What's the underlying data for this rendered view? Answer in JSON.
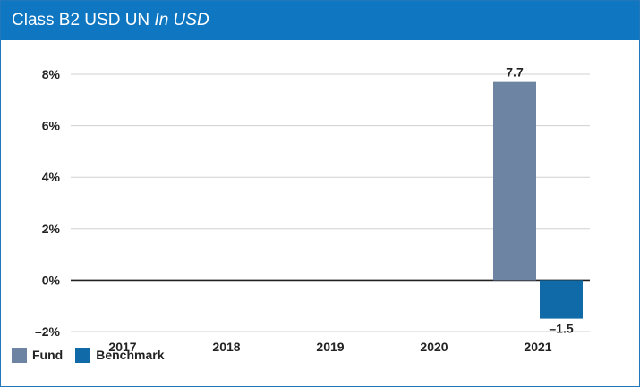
{
  "header": {
    "title": "Class B2 USD UN",
    "subtitle": "In USD",
    "background": "#0f77c1"
  },
  "chart_data": {
    "type": "bar",
    "categories": [
      "2017",
      "2018",
      "2019",
      "2020",
      "2021"
    ],
    "series": [
      {
        "name": "Fund",
        "color": "#6d84a3",
        "values": [
          null,
          null,
          null,
          null,
          7.7
        ]
      },
      {
        "name": "Benchmark",
        "color": "#0f6aa7",
        "values": [
          null,
          null,
          null,
          null,
          -1.5
        ]
      }
    ],
    "data_labels": [
      "7.7",
      "–1.5"
    ],
    "y_ticks": [
      {
        "value": 8,
        "label": "8%"
      },
      {
        "value": 6,
        "label": "6%"
      },
      {
        "value": 4,
        "label": "4%"
      },
      {
        "value": 2,
        "label": "2%"
      },
      {
        "value": 0,
        "label": "0%"
      },
      {
        "value": -2,
        "label": "–2%"
      }
    ],
    "ylim": [
      -2,
      8
    ],
    "grid": true,
    "legend_position": "bottom-left"
  }
}
